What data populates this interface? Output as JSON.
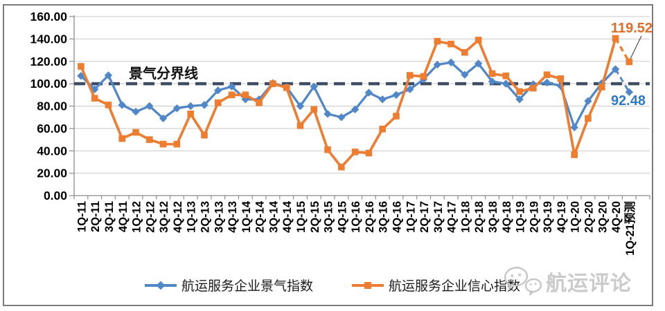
{
  "chart_data": {
    "type": "line",
    "title": "",
    "xlabel": "",
    "ylabel": "",
    "grid": true,
    "legend_position": "bottom",
    "ylim": [
      0,
      160
    ],
    "ytick_step": 20,
    "ytick_format_decimals": 2,
    "categories": [
      "1Q-11",
      "2Q-11",
      "3Q-11",
      "4Q-11",
      "1Q-12",
      "2Q-12",
      "3Q-12",
      "4Q-12",
      "1Q-13",
      "2Q-13",
      "3Q-13",
      "4Q-13",
      "1Q-14",
      "2Q-14",
      "3Q-14",
      "4Q-14",
      "1Q-15",
      "2Q-15",
      "3Q-15",
      "4Q-15",
      "1Q-16",
      "2Q-16",
      "3Q-16",
      "4Q-16",
      "1Q-17",
      "2Q-17",
      "3Q-17",
      "4Q-17",
      "1Q-18",
      "2Q-18",
      "3Q-18",
      "4Q-18",
      "1Q-19",
      "2Q-19",
      "3Q-19",
      "4Q-19",
      "1Q-20",
      "2Q-20",
      "3Q-20",
      "4Q-20",
      "1Q-21预测"
    ],
    "series": [
      {
        "name": "航运服务企业景气指数",
        "color": "#4F87C8",
        "marker": "diamond",
        "values": [
          107,
          95,
          107.5,
          81,
          75,
          80,
          69,
          78,
          80,
          81,
          94,
          97.5,
          86,
          86,
          100.5,
          97,
          80,
          97.5,
          73,
          70,
          77,
          92,
          86,
          90,
          95,
          104,
          117,
          119,
          108,
          118,
          102,
          100,
          86,
          99.5,
          101,
          98,
          61,
          84.5,
          100.5,
          113,
          92.48
        ]
      },
      {
        "name": "航运服务企业信心指数",
        "color": "#ED7D31",
        "marker": "square",
        "values": [
          115.5,
          87,
          81,
          51,
          56.5,
          50,
          46,
          46,
          73,
          54,
          83,
          90,
          90,
          83,
          100,
          96.5,
          62.5,
          77,
          41,
          25.5,
          39,
          38,
          59.5,
          71,
          107.5,
          106.5,
          138,
          135.5,
          128,
          139,
          109,
          107,
          93,
          96,
          108,
          104.5,
          36.5,
          69,
          97,
          140.5,
          119.52
        ]
      }
    ],
    "forecast_from_index": 39,
    "threshold": {
      "value": 100,
      "label": "景气分界线",
      "color": "#3E4D63"
    },
    "annotations": [
      {
        "text": "119.52",
        "color": "#E26B24",
        "series": "航运服务企业信心指数",
        "category": "1Q-21预测"
      },
      {
        "text": "92.48",
        "color": "#2E79C6",
        "series": "航运服务企业景气指数",
        "category": "1Q-21预测"
      }
    ]
  },
  "watermark": {
    "text": "航运评论",
    "icon": "wechat-icon"
  }
}
